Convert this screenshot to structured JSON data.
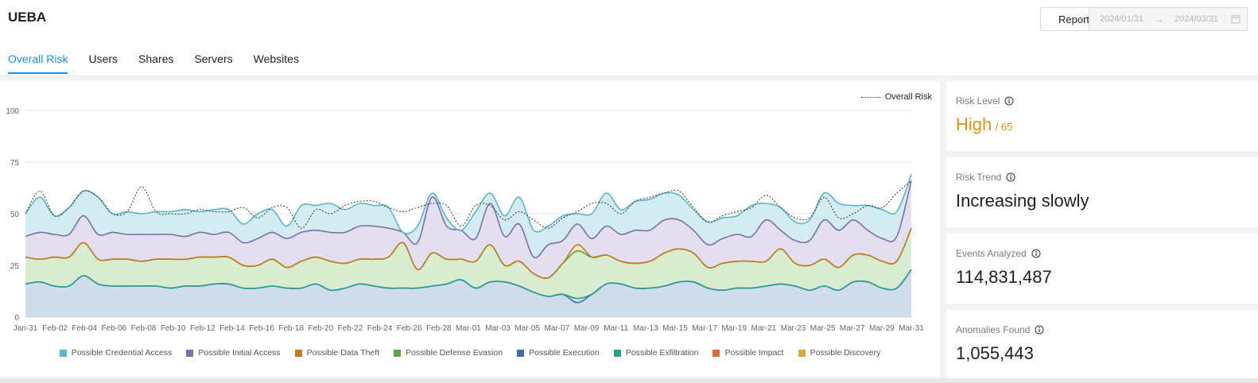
{
  "header": {
    "title": "UEBA",
    "report_label": "Report",
    "date_start": "2024/01/31",
    "date_arrow": "→",
    "date_end": "2024/03/31"
  },
  "tabs": [
    {
      "label": "Overall Risk",
      "active": true
    },
    {
      "label": "Users"
    },
    {
      "label": "Shares"
    },
    {
      "label": "Servers"
    },
    {
      "label": "Websites"
    }
  ],
  "stats": {
    "risk_level": {
      "label": "Risk Level",
      "value": "High",
      "score": "/ 65"
    },
    "risk_trend": {
      "label": "Risk Trend",
      "value": "Increasing slowly"
    },
    "events": {
      "label": "Events Analyzed",
      "value": "114,831,487"
    },
    "anomalies": {
      "label": "Anomalies Found",
      "value": "1,055,443"
    }
  },
  "chart_data": {
    "type": "area",
    "stacked": true,
    "ylim": [
      0,
      100
    ],
    "yticks": [
      0,
      25,
      50,
      75,
      100
    ],
    "grid": true,
    "x_tick_labels": [
      "Jan-31",
      "Feb-02",
      "Feb-04",
      "Feb-06",
      "Feb-08",
      "Feb-10",
      "Feb-12",
      "Feb-14",
      "Feb-16",
      "Feb-18",
      "Feb-20",
      "Feb-22",
      "Feb-24",
      "Feb-26",
      "Feb-28",
      "Mar-01",
      "Mar-03",
      "Mar-05",
      "Mar-07",
      "Mar-09",
      "Mar-11",
      "Mar-13",
      "Mar-15",
      "Mar-17",
      "Mar-19",
      "Mar-21",
      "Mar-23",
      "Mar-25",
      "Mar-27",
      "Mar-29",
      "Mar-31"
    ],
    "legend_top": "Overall Risk",
    "legend_placement": "bottom",
    "series": [
      {
        "name": "Possible Execution",
        "color": "#3b6fb0",
        "fill": "#cfdcec",
        "values": [
          16,
          17,
          15,
          15,
          20,
          16,
          15,
          15,
          15,
          15,
          14,
          15,
          15,
          16,
          16,
          14,
          14,
          15,
          14,
          14,
          16,
          13,
          14,
          16,
          15,
          14,
          14,
          14,
          15,
          16,
          18,
          14,
          17,
          17,
          15,
          12,
          10,
          11,
          7,
          11,
          16,
          16,
          14,
          14,
          15,
          17,
          17,
          14,
          13,
          14,
          14,
          15,
          16,
          15,
          13,
          15,
          13,
          17,
          17,
          14,
          14,
          23
        ]
      },
      {
        "name": "Possible Exfiltration",
        "color": "#2a9d8f",
        "fill": "#cfe9e5",
        "values": [
          0,
          0,
          0,
          0,
          0,
          0,
          0,
          0,
          0,
          0,
          0,
          0,
          0,
          0,
          0,
          0,
          0,
          0,
          0,
          0,
          0,
          0,
          0,
          0,
          0,
          0,
          0,
          0,
          0,
          0,
          0,
          0,
          0,
          0,
          0,
          0,
          0,
          0,
          2,
          0,
          0,
          0,
          0,
          0,
          0,
          0,
          0,
          0,
          0,
          0,
          0,
          0,
          0,
          0,
          0,
          0,
          0,
          0,
          0,
          0,
          0,
          0
        ]
      },
      {
        "name": "Possible Defense Evasion",
        "color": "#5aa83d",
        "fill": "#d8ecd0",
        "values": [
          13,
          11,
          14,
          14,
          16,
          12,
          13,
          13,
          12,
          13,
          14,
          13,
          14,
          13,
          13,
          11,
          11,
          13,
          10,
          13,
          13,
          14,
          12,
          12,
          13,
          15,
          22,
          9,
          16,
          12,
          10,
          13,
          18,
          8,
          12,
          9,
          9,
          15,
          23,
          18,
          14,
          11,
          12,
          13,
          16,
          16,
          14,
          10,
          13,
          13,
          13,
          12,
          17,
          11,
          12,
          13,
          11,
          13,
          13,
          13,
          13,
          20
        ]
      },
      {
        "name": "Possible Data Theft",
        "color": "#c27a1a",
        "fill": "#f3e2c8",
        "values": [
          0,
          0,
          0,
          0,
          0,
          0,
          0,
          0,
          0,
          0,
          0,
          0,
          0,
          0,
          0,
          0,
          0,
          0,
          0,
          0,
          0,
          0,
          0,
          0,
          0,
          0,
          0,
          0,
          0,
          0,
          0,
          0,
          0,
          0,
          0,
          0,
          0,
          0,
          3,
          0,
          0,
          0,
          0,
          0,
          0,
          0,
          0,
          0,
          0,
          0,
          0,
          0,
          0,
          0,
          0,
          0,
          0,
          0,
          0,
          0,
          0,
          0
        ]
      },
      {
        "name": "Possible Initial Access",
        "color": "#7b6fa8",
        "fill": "#e4dfee",
        "values": [
          10,
          13,
          11,
          11,
          13,
          12,
          13,
          12,
          13,
          12,
          12,
          11,
          12,
          11,
          12,
          11,
          13,
          13,
          14,
          14,
          13,
          14,
          15,
          16,
          16,
          14,
          5,
          13,
          27,
          16,
          14,
          11,
          20,
          14,
          18,
          8,
          16,
          11,
          10,
          9,
          14,
          13,
          16,
          15,
          16,
          14,
          11,
          11,
          12,
          13,
          12,
          20,
          9,
          11,
          12,
          19,
          18,
          17,
          12,
          11,
          12,
          23
        ]
      },
      {
        "name": "Possible Credential Access",
        "color": "#58b7c9",
        "fill": "#d2ecf1",
        "values": [
          11,
          17,
          9,
          13,
          12,
          18,
          9,
          11,
          10,
          11,
          11,
          13,
          10,
          12,
          11,
          9,
          12,
          11,
          6,
          13,
          12,
          14,
          11,
          11,
          10,
          10,
          0,
          8,
          2,
          4,
          0,
          13,
          5,
          10,
          13,
          13,
          9,
          12,
          5,
          12,
          16,
          12,
          14,
          15,
          13,
          12,
          10,
          11,
          10,
          9,
          15,
          8,
          11,
          9,
          10,
          13,
          13,
          7,
          12,
          14,
          12,
          3
        ]
      },
      {
        "name": "Possible Impact",
        "color": "#e06a2c",
        "fill": "#f6dccc",
        "values": []
      },
      {
        "name": "Possible Discovery",
        "color": "#e8a33a",
        "fill": "#f8e7c8",
        "values": []
      }
    ],
    "overall_risk": [
      50,
      61,
      49,
      53,
      61,
      58,
      50,
      51,
      63,
      51,
      50,
      50,
      52,
      51,
      51,
      53,
      48,
      53,
      53,
      43,
      52,
      50,
      54,
      56,
      56,
      53,
      51,
      53,
      55,
      54,
      44,
      54,
      54,
      47,
      51,
      47,
      43,
      48,
      51,
      55,
      55,
      50,
      56,
      58,
      60,
      61,
      53,
      46,
      49,
      51,
      53,
      59,
      53,
      48,
      48,
      58,
      48,
      50,
      54,
      53,
      60,
      66
    ]
  }
}
